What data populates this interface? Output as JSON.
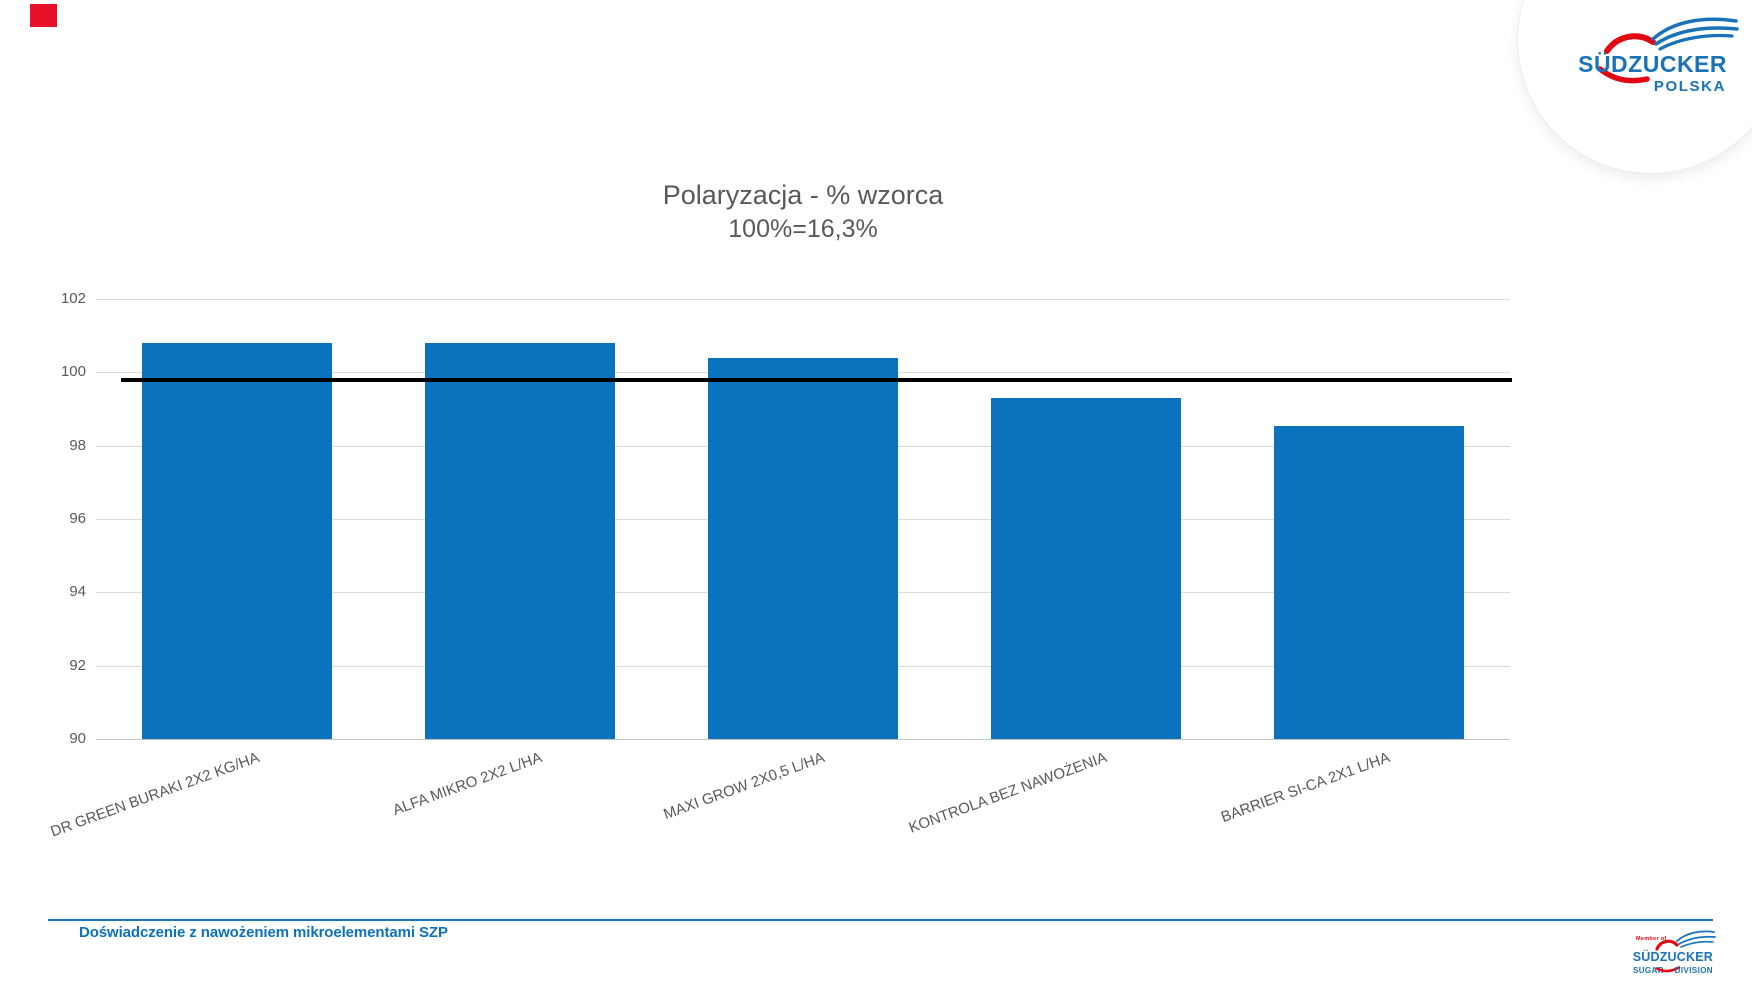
{
  "slide": {
    "marker_color": "#e8112a"
  },
  "brand": {
    "blue": "#1a72b8",
    "red": "#e30613",
    "top_logo": {
      "name": "SÜDZUCKER",
      "sub": "POLSKA"
    },
    "bottom_logo": {
      "member": "Member of",
      "name": "SÜDZUCKER",
      "division_left": "SUGAR",
      "division_right": "DIVISION"
    }
  },
  "chart_data": {
    "type": "bar",
    "title": "Polaryzacja - % wzorca",
    "subtitle": "100%=16,3%",
    "categories": [
      "DR GREEN BURAKI 2X2 KG/HA",
      "ALFA MIKRO 2X2 L/HA",
      "MAXI GROW 2X0,5 L/HA",
      "KONTROLA BEZ NAWOŻENIA",
      "BARRIER SI-CA 2X1 L/HA"
    ],
    "values": [
      100.8,
      100.8,
      100.4,
      99.3,
      98.55
    ],
    "reference_line": 99.8,
    "ylim": [
      90,
      102
    ],
    "yticks": [
      90,
      92,
      94,
      96,
      98,
      100,
      102
    ],
    "bar_color": "#0b72bd",
    "grid": true,
    "legend": "none",
    "xlabel": "",
    "ylabel": ""
  },
  "footer": {
    "caption": "Doświadczenie z nawożeniem mikroelementami SZP"
  }
}
